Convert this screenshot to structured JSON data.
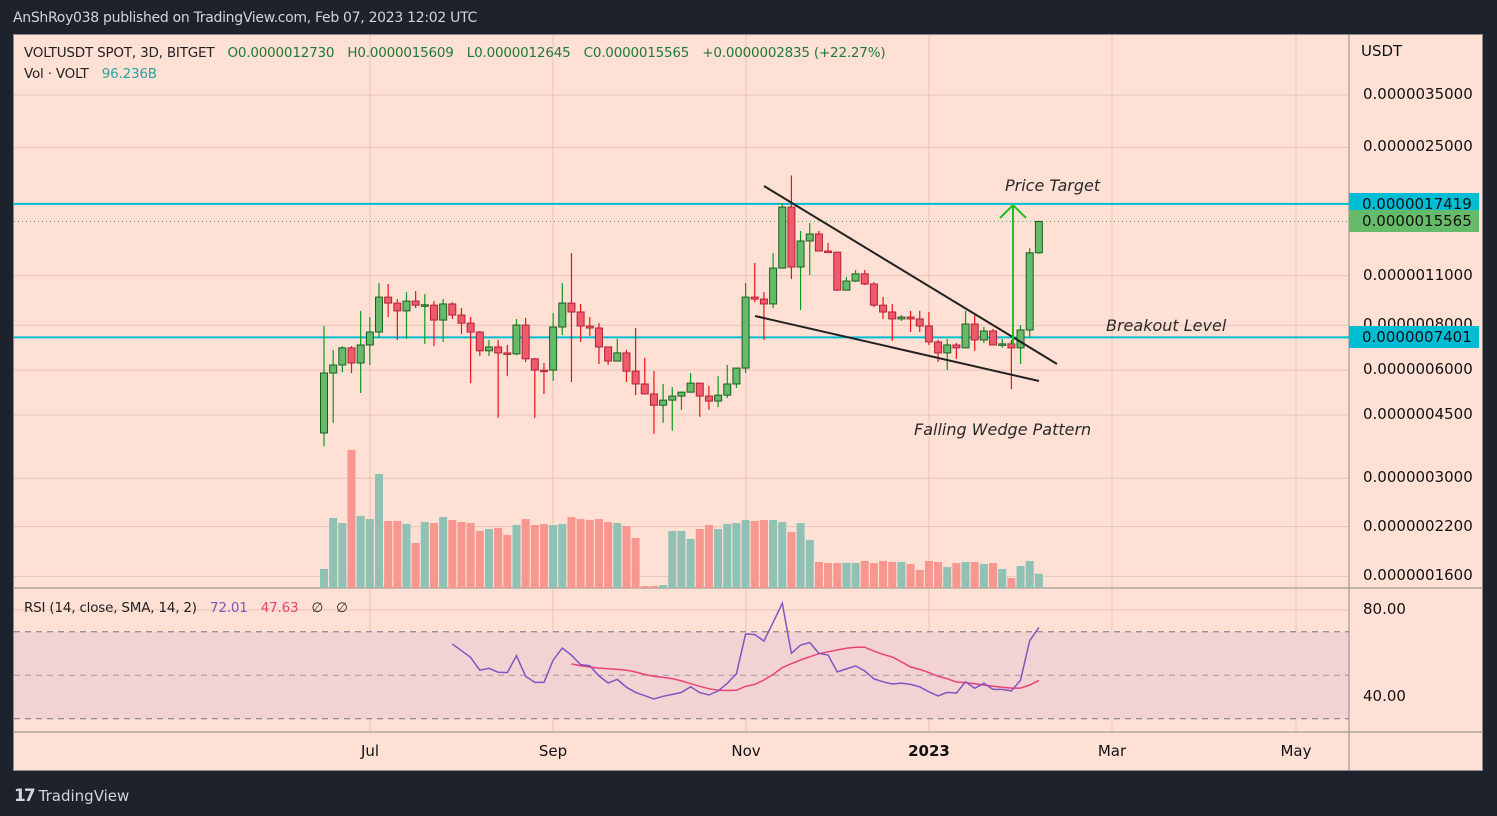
{
  "publish_line": "AnShRoy038 published on TradingView.com, Feb 07, 2023 12:02 UTC",
  "legend": {
    "symbol": "VOLTUSDT SPOT, 3D, BITGET",
    "open": "O0.0000012730",
    "high": "H0.0000015609",
    "low": "L0.0000012645",
    "close": "C0.0000015565",
    "change": "+0.0000002835 (+22.27%)",
    "vol_label": "Vol · VOLT",
    "vol_value": "96.236B",
    "rsi_label": "RSI (14, close, SMA, 14, 2)",
    "rsi_value": "72.01",
    "rsi_sma_value": "47.63",
    "rsi_extra1": "∅",
    "rsi_extra2": "∅"
  },
  "annotations": {
    "price_target": "Price Target",
    "breakout_level": "Breakout Level",
    "pattern": "Falling Wedge Pattern"
  },
  "branding": "TradingView",
  "colors": {
    "up": "#66bb6a",
    "down": "#f05a6b",
    "up_border": "#1b5e20",
    "down_border": "#b2223a",
    "vol_up": "#8fc1b5",
    "vol_down": "#f7978f",
    "rsi": "#7e57c2",
    "rsi_sma": "#ec407a",
    "level": "#00bcd4",
    "background": "#ffe0d4"
  },
  "chart_data": {
    "type": "candlestick",
    "symbol": "VOLTUSDT",
    "interval": "3D",
    "currency_label": "USDT",
    "y_scale": "log",
    "price_ticks": [
      "0.0000035000",
      "0.0000025000",
      "0.0000011000",
      "0.0000008000",
      "0.0000006000",
      "0.0000004500",
      "0.0000003000",
      "0.0000002200",
      "0.0000001600"
    ],
    "price_tick_values": [
      3.5e-06,
      2.5e-06,
      1.1e-06,
      8e-07,
      6e-07,
      4.5e-07,
      3e-07,
      2.2e-07,
      1.6e-07
    ],
    "x_ticks": [
      "Jul",
      "Sep",
      "Nov",
      "2023",
      "Mar",
      "May"
    ],
    "levels": [
      {
        "value": 1.7419e-06,
        "label": "0.0000017419"
      },
      {
        "value": 7.401e-07,
        "label": "0.0000007401"
      }
    ],
    "last_price": {
      "value": 1.5565e-06,
      "label": "0.0000015565"
    },
    "ohlc": [
      [
        4.01e-07,
        7.96e-07,
        3.68e-07,
        5.89e-07
      ],
      [
        5.89e-07,
        6.83e-07,
        4.28e-07,
        6.2e-07
      ],
      [
        6.2e-07,
        7e-07,
        5.92e-07,
        6.92e-07
      ],
      [
        6.92e-07,
        7e-07,
        5.89e-07,
        6.28e-07
      ],
      [
        6.28e-07,
        8.77e-07,
        5.18e-07,
        7.05e-07
      ],
      [
        7.05e-07,
        8.43e-07,
        6.2e-07,
        7.66e-07
      ],
      [
        7.66e-07,
        1.049e-06,
        7.42e-07,
        9.58e-07
      ],
      [
        9.58e-07,
        1.042e-06,
        8.43e-07,
        9.22e-07
      ],
      [
        9.22e-07,
        9.46e-07,
        7.28e-07,
        8.77e-07
      ],
      [
        8.77e-07,
        9.89e-07,
        7.33e-07,
        9.34e-07
      ],
      [
        9.34e-07,
        9.96e-07,
        8.93e-07,
        9.1e-07
      ],
      [
        9.1e-07,
        9.77e-07,
        7.1e-07,
        9.12e-07
      ],
      [
        9.1e-07,
        9.34e-07,
        7e-07,
        8.27e-07
      ],
      [
        8.27e-07,
        9.46e-07,
        7.19e-07,
        9.17e-07
      ],
      [
        9.17e-07,
        9.28e-07,
        8.33e-07,
        8.54e-07
      ],
      [
        8.54e-07,
        8.93e-07,
        7.57e-07,
        8.11e-07
      ],
      [
        8.11e-07,
        8.43e-07,
        5.52e-07,
        7.66e-07
      ],
      [
        7.66e-07,
        7.71e-07,
        6.57e-07,
        6.79e-07
      ],
      [
        6.79e-07,
        7.28e-07,
        6.57e-07,
        6.96e-07
      ],
      [
        6.96e-07,
        7.28e-07,
        4.42e-07,
        6.7e-07
      ],
      [
        6.7e-07,
        7.05e-07,
        5.77e-07,
        6.66e-07
      ],
      [
        6.66e-07,
        8.33e-07,
        6.6e-07,
        8.01e-07
      ],
      [
        8.01e-07,
        8.38e-07,
        6.32e-07,
        6.45e-07
      ],
      [
        6.45e-07,
        6.49e-07,
        4.42e-07,
        6e-07
      ],
      [
        6e-07,
        6.28e-07,
        5.15e-07,
        5.98e-07
      ],
      [
        6e-07,
        8.65e-07,
        5.6e-07,
        7.91e-07
      ],
      [
        7.91e-07,
        1.049e-06,
        7.51e-07,
        9.22e-07
      ],
      [
        9.22e-07,
        1.27e-06,
        5.56e-07,
        8.71e-07
      ],
      [
        8.71e-07,
        9.17e-07,
        7.19e-07,
        7.96e-07
      ],
      [
        7.96e-07,
        8.43e-07,
        7.47e-07,
        7.86e-07
      ],
      [
        7.86e-07,
        8.11e-07,
        6.24e-07,
        6.96e-07
      ],
      [
        6.96e-07,
        6.98e-07,
        6.2e-07,
        6.36e-07
      ],
      [
        6.36e-07,
        7.33e-07,
        6.34e-07,
        6.7e-07
      ],
      [
        6.7e-07,
        6.83e-07,
        5.56e-07,
        5.96e-07
      ],
      [
        5.96e-07,
        7.86e-07,
        5.11e-07,
        5.49e-07
      ],
      [
        5.49e-07,
        6.49e-07,
        5.13e-07,
        5.15e-07
      ],
      [
        5.15e-07,
        5.96e-07,
        3.99e-07,
        4.79e-07
      ],
      [
        4.79e-07,
        5.49e-07,
        4.28e-07,
        4.95e-07
      ],
      [
        4.95e-07,
        5.38e-07,
        4.07e-07,
        5.08e-07
      ],
      [
        5.08e-07,
        5.23e-07,
        4.65e-07,
        5.21e-07
      ],
      [
        5.21e-07,
        5.89e-07,
        5.19e-07,
        5.52e-07
      ],
      [
        5.52e-07,
        5.54e-07,
        4.45e-07,
        5.08e-07
      ],
      [
        5.08e-07,
        5.42e-07,
        4.65e-07,
        4.92e-07
      ],
      [
        4.92e-07,
        5.77e-07,
        4.73e-07,
        5.11e-07
      ],
      [
        5.11e-07,
        6.2e-07,
        5.02e-07,
        5.49e-07
      ],
      [
        5.49e-07,
        6.1e-07,
        5.35e-07,
        6.08e-07
      ],
      [
        6.08e-07,
        1.049e-06,
        5.89e-07,
        9.58e-07
      ],
      [
        9.58e-07,
        1.192e-06,
        9.28e-07,
        9.46e-07
      ],
      [
        9.46e-07,
        9.89e-07,
        7.28e-07,
        9.17e-07
      ],
      [
        9.17e-07,
        1.27e-06,
        8.93e-07,
        1.154e-06
      ],
      [
        1.154e-06,
        1.751e-06,
        1.15e-06,
        1.706e-06
      ],
      [
        1.706e-06,
        2.09e-06,
        1.076e-06,
        1.162e-06
      ],
      [
        1.162e-06,
        1.464e-06,
        8.82e-07,
        1.373e-06
      ],
      [
        1.373e-06,
        1.54e-06,
        1.104e-06,
        1.436e-06
      ],
      [
        1.436e-06,
        1.464e-06,
        1.285e-06,
        1.287e-06
      ],
      [
        1.287e-06,
        1.355e-06,
        1.275e-06,
        1.278e-06
      ],
      [
        1.278e-06,
        1.28e-06,
        9.96e-07,
        1.002e-06
      ],
      [
        1.002e-06,
        1.09e-06,
        1e-06,
        1.062e-06
      ],
      [
        1.062e-06,
        1.14e-06,
        1.055e-06,
        1.112e-06
      ],
      [
        1.112e-06,
        1.14e-06,
        1.035e-06,
        1.042e-06
      ],
      [
        1.042e-06,
        1.055e-06,
        8.99e-07,
        9.1e-07
      ],
      [
        9.1e-07,
        9.58e-07,
        8.33e-07,
        8.71e-07
      ],
      [
        8.71e-07,
        9.17e-07,
        7.24e-07,
        8.33e-07
      ],
      [
        8.33e-07,
        8.54e-07,
        8.22e-07,
        8.43e-07
      ],
      [
        8.43e-07,
        8.77e-07,
        7.66e-07,
        8.33e-07
      ],
      [
        8.33e-07,
        8.77e-07,
        7.66e-07,
        7.96e-07
      ],
      [
        7.96e-07,
        8.71e-07,
        7.05e-07,
        7.19e-07
      ],
      [
        7.19e-07,
        7.28e-07,
        6.32e-07,
        6.7e-07
      ],
      [
        6.7e-07,
        7.33e-07,
        6e-07,
        7.05e-07
      ],
      [
        7.05e-07,
        7.14e-07,
        6.45e-07,
        6.92e-07
      ],
      [
        6.92e-07,
        8.77e-07,
        6.9e-07,
        8.06e-07
      ],
      [
        8.06e-07,
        8.54e-07,
        6.79e-07,
        7.28e-07
      ],
      [
        7.28e-07,
        7.91e-07,
        7.14e-07,
        7.71e-07
      ],
      [
        7.71e-07,
        7.81e-07,
        7.03e-07,
        7.05e-07
      ],
      [
        7.05e-07,
        7.33e-07,
        6.92e-07,
        7.1e-07
      ],
      [
        7.1e-07,
        7.28e-07,
        5.31e-07,
        6.92e-07
      ],
      [
        6.92e-07,
        8.01e-07,
        6.24e-07,
        7.76e-07
      ],
      [
        7.76e-07,
        1.31e-06,
        7.4e-07,
        1.273e-06
      ],
      [
        1.273e-06,
        1.5609e-06,
        1.2645e-06,
        1.5565e-06
      ]
    ],
    "volume": [
      128000000000.0,
      471000000000.0,
      437000000000.0,
      929000000000.0,
      485000000000.0,
      464000000000.0,
      767000000000.0,
      451000000000.0,
      451000000000.0,
      431000000000.0,
      303000000000.0,
      444000000000.0,
      437000000000.0,
      478000000000.0,
      458000000000.0,
      444000000000.0,
      437000000000.0,
      384000000000.0,
      397000000000.0,
      404000000000.0,
      357000000000.0,
      424000000000.0,
      464000000000.0,
      424000000000.0,
      431000000000.0,
      424000000000.0,
      431000000000.0,
      478000000000.0,
      464000000000.0,
      458000000000.0,
      464000000000.0,
      444000000000.0,
      437000000000.0,
      417000000000.0,
      337000000000.0,
      13000000000.0,
      13000000000.0,
      20000000000.0,
      384000000000.0,
      384000000000.0,
      330000000000.0,
      397000000000.0,
      424000000000.0,
      397000000000.0,
      431000000000.0,
      437000000000.0,
      458000000000.0,
      451000000000.0,
      458000000000.0,
      458000000000.0,
      444000000000.0,
      377000000000.0,
      437000000000.0,
      323000000000.0,
      175000000000.0,
      168000000000.0,
      168000000000.0,
      168000000000.0,
      168000000000.0,
      182000000000.0,
      168000000000.0,
      182000000000.0,
      175000000000.0,
      175000000000.0,
      162000000000.0,
      121000000000.0,
      182000000000.0,
      175000000000.0,
      141000000000.0,
      168000000000.0,
      175000000000.0,
      175000000000.0,
      162000000000.0,
      168000000000.0,
      128000000000.0,
      67000000000.0,
      148000000000.0,
      182000000000.0,
      96236000000.0
    ],
    "rsi": {
      "ticks": [
        "80.00",
        "40.00"
      ],
      "bands": [
        70,
        50,
        30
      ],
      "values": [
        null,
        null,
        null,
        null,
        null,
        null,
        null,
        null,
        null,
        null,
        null,
        null,
        null,
        null,
        64.4,
        61.3,
        58.2,
        52.3,
        53.2,
        51.4,
        51.2,
        59.0,
        49.5,
        46.7,
        46.7,
        56.9,
        62.5,
        59.2,
        54.9,
        54.4,
        49.7,
        46.5,
        48.1,
        44.5,
        42.1,
        40.6,
        39.1,
        40.3,
        41.2,
        42.1,
        44.7,
        42.0,
        40.9,
        42.8,
        46.3,
        50.6,
        69.0,
        68.7,
        65.7,
        74.3,
        83.1,
        60.1,
        63.9,
        65.0,
        60.1,
        59.3,
        51.6,
        52.9,
        54.3,
        52.0,
        48.3,
        47.0,
        46.0,
        46.4,
        45.8,
        44.7,
        42.4,
        40.5,
        42.1,
        41.8,
        47.0,
        44.0,
        46.3,
        43.5,
        43.5,
        42.8,
        47.7,
        65.9,
        72.01
      ],
      "sma": [
        null,
        null,
        null,
        null,
        null,
        null,
        null,
        null,
        null,
        null,
        null,
        null,
        null,
        null,
        null,
        null,
        null,
        null,
        null,
        null,
        null,
        null,
        null,
        null,
        null,
        null,
        null,
        55.2,
        54.4,
        53.8,
        53.3,
        53.0,
        52.7,
        52.3,
        51.5,
        50.4,
        49.5,
        49.0,
        48.4,
        47.4,
        46.1,
        44.9,
        43.8,
        43.1,
        43.0,
        43.1,
        44.9,
        45.8,
        47.8,
        50.4,
        53.5,
        55.3,
        57.0,
        58.5,
        59.9,
        60.8,
        61.6,
        62.4,
        62.9,
        62.9,
        61.1,
        59.6,
        58.4,
        56.2,
        53.8,
        52.7,
        51.2,
        49.5,
        48.4,
        46.9,
        46.6,
        46.1,
        45.5,
        44.9,
        44.5,
        44.1,
        44.1,
        45.5,
        47.63
      ]
    }
  }
}
